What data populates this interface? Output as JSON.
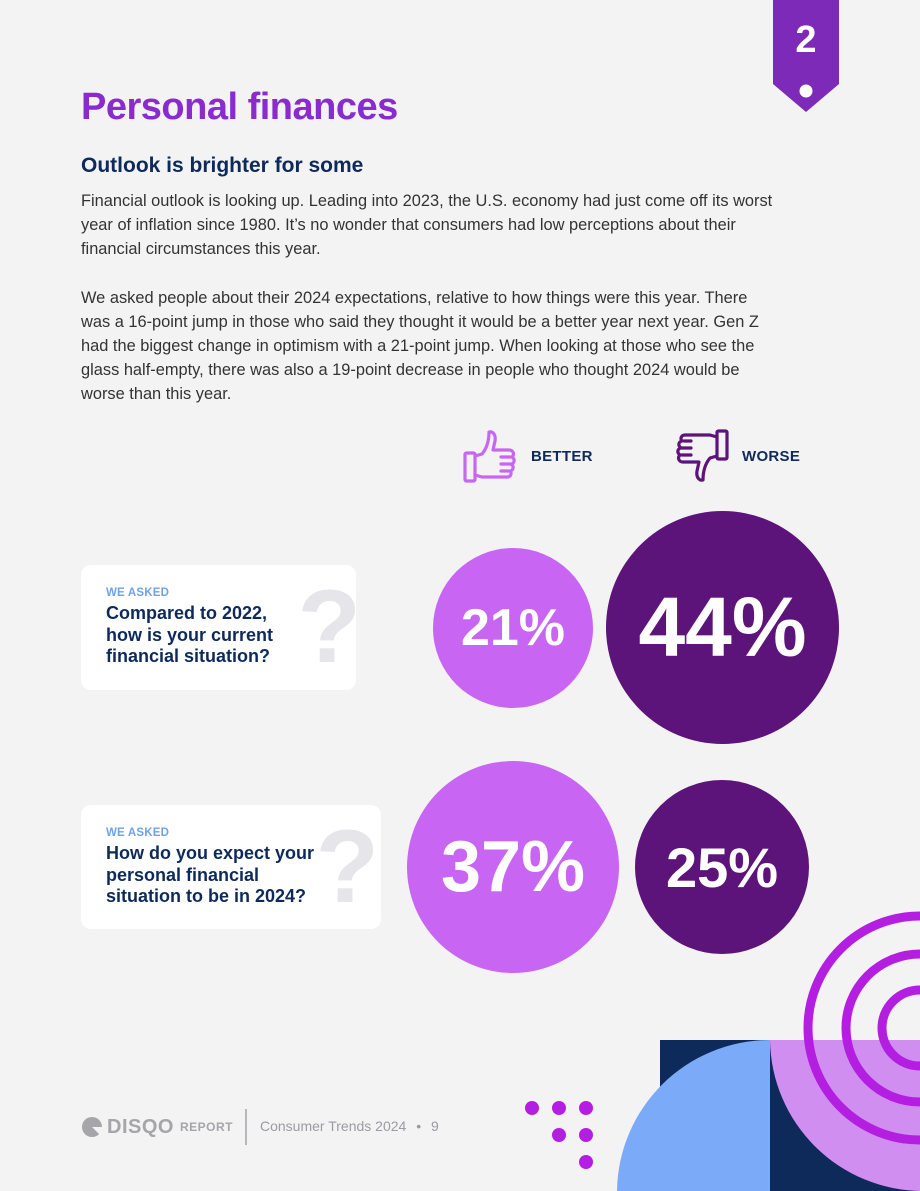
{
  "chapter_number": "2",
  "title": "Personal finances",
  "subtitle": "Outlook is brighter for some",
  "paragraphs": [
    "Financial outlook is looking up. Leading into 2023, the U.S. economy had just come off its worst year of inflation since 1980. It’s no wonder that consumers had low perceptions about their financial circumstances this year.",
    "We asked people about their 2024 expectations, relative to how things were this year. There was a 16-point jump in those who said they thought it would be a better year next year. Gen Z had the biggest change in optimism with a 21-point jump. When looking at those who see the glass half-empty, there was also a 19-point decrease in people who thought 2024 would be worse than this year."
  ],
  "legend": {
    "better_label": "BETTER",
    "worse_label": "WORSE",
    "better_icon": "thumbs-up-icon",
    "worse_icon": "thumbs-down-icon"
  },
  "questions": [
    {
      "asked_label": "WE ASKED",
      "question": "Compared to 2022, how is your current financial situation?",
      "better_value": "21%",
      "worse_value": "44%"
    },
    {
      "asked_label": "WE ASKED",
      "question": "How do you expect your personal financial situation to be in 2024?",
      "better_value": "37%",
      "worse_value": "25%"
    }
  ],
  "chart_data": {
    "type": "bubble",
    "categories": [
      "Compared to 2022, how is your current financial situation?",
      "How do you expect your personal financial situation to be in 2024?"
    ],
    "series": [
      {
        "name": "BETTER",
        "values": [
          21,
          37
        ]
      },
      {
        "name": "WORSE",
        "values": [
          44,
          25
        ]
      }
    ],
    "unit": "%"
  },
  "footer": {
    "brand": "DISQO",
    "report_label": "REPORT",
    "publication": "Consumer Trends 2024",
    "separator": "•",
    "page_number": "9"
  },
  "colors": {
    "title": "#8a2bd0",
    "navy": "#0e2a5b",
    "better_circle": "#c866f3",
    "worse_circle": "#5c137a",
    "accent_blue": "#7aaaf8",
    "accent_purple": "#b41ee0",
    "footer_gray": "#a5a5aa"
  }
}
